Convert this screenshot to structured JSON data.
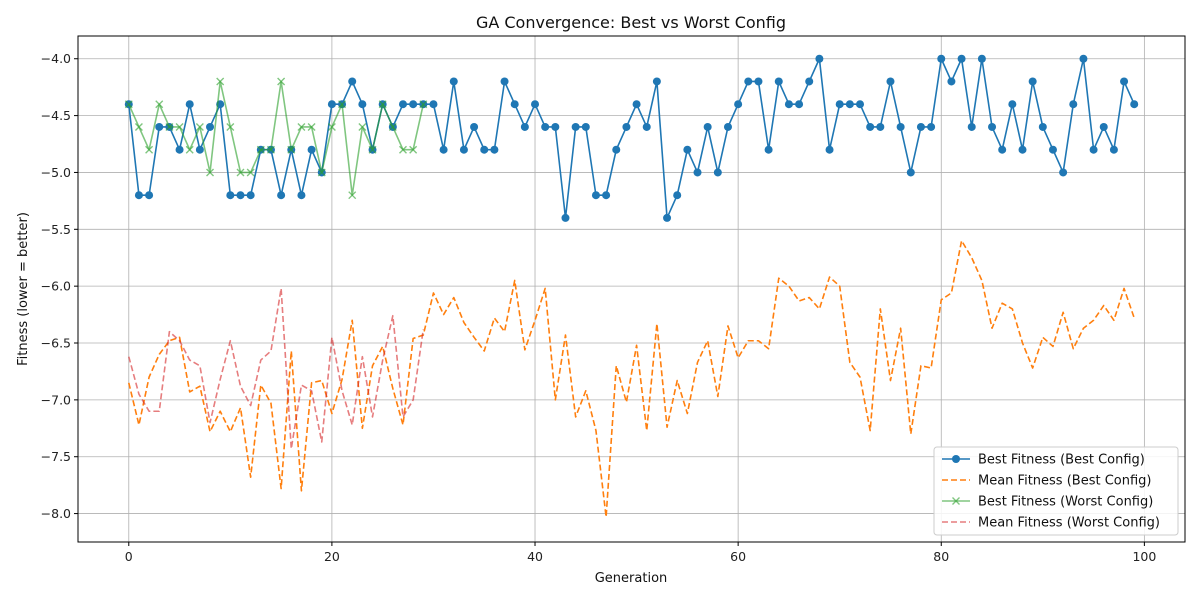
{
  "chart_data": {
    "type": "line",
    "title": "GA Convergence: Best vs Worst Config",
    "xlabel": "Generation",
    "ylabel": "Fitness (lower = better)",
    "xlim": [
      -5,
      104
    ],
    "ylim": [
      -8.25,
      -3.8
    ],
    "xticks": [
      0,
      20,
      40,
      60,
      80,
      100
    ],
    "yticks": [
      -8.0,
      -7.5,
      -7.0,
      -6.5,
      -6.0,
      -5.5,
      -5.0,
      -4.5,
      -4.0
    ],
    "ytick_labels": [
      "−8.0",
      "−7.5",
      "−7.0",
      "−6.5",
      "−6.0",
      "−5.5",
      "−5.0",
      "−4.5",
      "−4.0"
    ],
    "grid": true,
    "legend_position": "lower-right",
    "series": [
      {
        "name": "Best Fitness (Best Config)",
        "color": "#1f77b4",
        "style": "solid",
        "marker": "circle",
        "x_start": 0,
        "values": [
          -4.4,
          -5.2,
          -5.2,
          -4.6,
          -4.6,
          -4.8,
          -4.4,
          -4.8,
          -4.6,
          -4.4,
          -5.2,
          -5.2,
          -5.2,
          -4.8,
          -4.8,
          -5.2,
          -4.8,
          -5.2,
          -4.8,
          -5.0,
          -4.4,
          -4.4,
          -4.2,
          -4.4,
          -4.8,
          -4.4,
          -4.6,
          -4.4,
          -4.4,
          -4.4,
          -4.4,
          -4.8,
          -4.2,
          -4.8,
          -4.6,
          -4.8,
          -4.8,
          -4.2,
          -4.4,
          -4.6,
          -4.4,
          -4.6,
          -4.6,
          -5.4,
          -4.6,
          -4.6,
          -5.2,
          -5.2,
          -4.8,
          -4.6,
          -4.4,
          -4.6,
          -4.2,
          -5.4,
          -5.2,
          -4.8,
          -5.0,
          -4.6,
          -5.0,
          -4.6,
          -4.4,
          -4.2,
          -4.2,
          -4.8,
          -4.2,
          -4.4,
          -4.4,
          -4.2,
          -4.0,
          -4.8,
          -4.4,
          -4.4,
          -4.4,
          -4.6,
          -4.6,
          -4.2,
          -4.6,
          -5.0,
          -4.6,
          -4.6,
          -4.0,
          -4.2,
          -4.0,
          -4.6,
          -4.0,
          -4.6,
          -4.8,
          -4.4,
          -4.8,
          -4.2,
          -4.6,
          -4.8,
          -5.0,
          -4.4,
          -4.0,
          -4.8,
          -4.6,
          -4.8,
          -4.2,
          -4.4
        ]
      },
      {
        "name": "Mean Fitness (Best Config)",
        "color": "#ff7f0e",
        "style": "dashed",
        "marker": "none",
        "x_start": 0,
        "values": [
          -6.85,
          -7.22,
          -6.8,
          -6.6,
          -6.48,
          -6.45,
          -6.93,
          -6.88,
          -7.28,
          -7.1,
          -7.28,
          -7.07,
          -7.68,
          -6.87,
          -7.03,
          -7.78,
          -6.57,
          -7.8,
          -6.85,
          -6.83,
          -7.12,
          -6.82,
          -6.3,
          -7.25,
          -6.7,
          -6.53,
          -6.9,
          -7.22,
          -6.46,
          -6.43,
          -6.06,
          -6.25,
          -6.1,
          -6.32,
          -6.45,
          -6.57,
          -6.28,
          -6.4,
          -5.95,
          -6.56,
          -6.3,
          -6.02,
          -7.0,
          -6.43,
          -7.15,
          -6.92,
          -7.27,
          -8.03,
          -6.7,
          -7.02,
          -6.52,
          -7.27,
          -6.33,
          -7.24,
          -6.83,
          -7.12,
          -6.67,
          -6.48,
          -6.97,
          -6.35,
          -6.63,
          -6.48,
          -6.48,
          -6.55,
          -5.93,
          -6.0,
          -6.13,
          -6.1,
          -6.2,
          -5.92,
          -6.0,
          -6.67,
          -6.8,
          -7.27,
          -6.2,
          -6.83,
          -6.37,
          -7.3,
          -6.7,
          -6.72,
          -6.12,
          -6.06,
          -5.6,
          -5.75,
          -5.95,
          -6.37,
          -6.15,
          -6.2,
          -6.5,
          -6.72,
          -6.45,
          -6.53,
          -6.23,
          -6.55,
          -6.37,
          -6.3,
          -6.17,
          -6.3,
          -6.02,
          -6.28
        ]
      },
      {
        "name": "Best Fitness (Worst Config)",
        "color": "#2ca02c",
        "style": "solid",
        "marker": "x",
        "x_start": 0,
        "values": [
          -4.4,
          -4.6,
          -4.8,
          -4.4,
          -4.6,
          -4.6,
          -4.8,
          -4.6,
          -5.0,
          -4.2,
          -4.6,
          -5.0,
          -5.0,
          -4.8,
          -4.8,
          -4.2,
          -4.8,
          -4.6,
          -4.6,
          -5.0,
          -4.6,
          -4.4,
          -5.2,
          -4.6,
          -4.8,
          -4.4,
          -4.6,
          -4.8,
          -4.8,
          -4.4
        ]
      },
      {
        "name": "Mean Fitness (Worst Config)",
        "color": "#d62728",
        "style": "dashed",
        "marker": "none",
        "x_start": 0,
        "values": [
          -6.62,
          -6.95,
          -7.1,
          -7.1,
          -6.4,
          -6.48,
          -6.65,
          -6.7,
          -7.2,
          -6.82,
          -6.48,
          -6.88,
          -7.05,
          -6.65,
          -6.57,
          -6.02,
          -7.43,
          -6.87,
          -6.92,
          -7.37,
          -6.45,
          -6.92,
          -7.22,
          -6.62,
          -7.15,
          -6.65,
          -6.26,
          -7.15,
          -7.0,
          -6.38
        ]
      }
    ]
  }
}
